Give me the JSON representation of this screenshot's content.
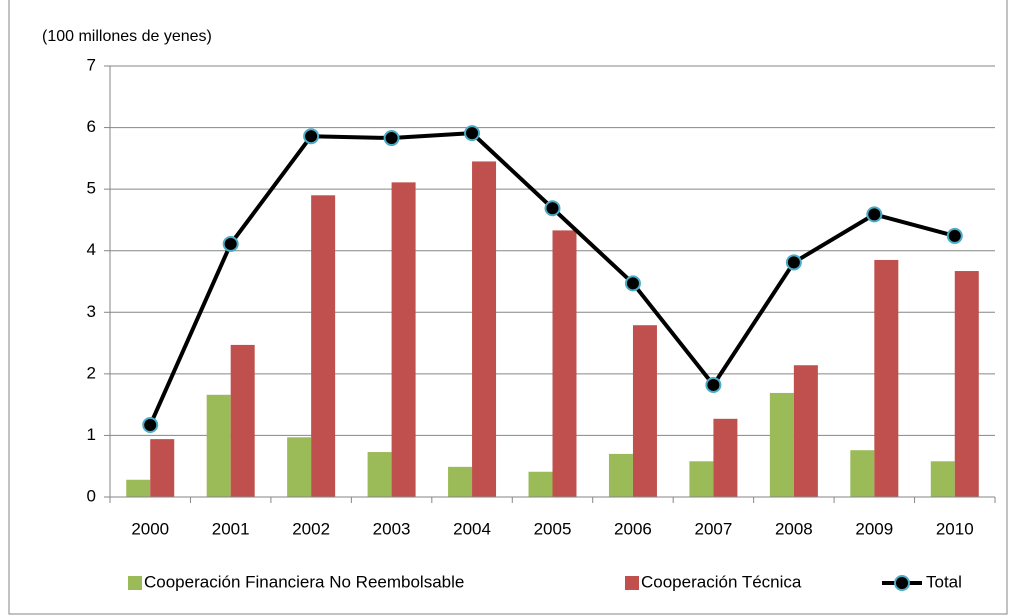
{
  "chart_data": {
    "type": "bar",
    "y_axis_label": "(100 millones de yenes)",
    "categories": [
      "2000",
      "2001",
      "2002",
      "2003",
      "2004",
      "2005",
      "2006",
      "2007",
      "2008",
      "2009",
      "2010"
    ],
    "series": [
      {
        "name": "Cooperación Financiera No Reembolsable",
        "type": "bar",
        "color": "#9bbb59",
        "values": [
          0.28,
          1.66,
          0.97,
          0.73,
          0.49,
          0.41,
          0.7,
          0.58,
          1.69,
          0.76,
          0.58
        ]
      },
      {
        "name": "Cooperación Técnica",
        "type": "bar",
        "color": "#c0504d",
        "values": [
          0.94,
          2.47,
          4.9,
          5.11,
          5.45,
          4.33,
          2.79,
          1.27,
          2.14,
          3.85,
          3.67
        ]
      },
      {
        "name": "Total",
        "type": "line",
        "color": "#000000",
        "marker_color": "#4bacc6",
        "values": [
          1.17,
          4.11,
          5.86,
          5.83,
          5.91,
          4.69,
          3.47,
          1.82,
          3.81,
          4.59,
          4.24
        ]
      }
    ],
    "ylim": [
      0,
      7
    ],
    "yticks": [
      0,
      1,
      2,
      3,
      4,
      5,
      6,
      7
    ],
    "grid": true,
    "legend": "bottom"
  }
}
